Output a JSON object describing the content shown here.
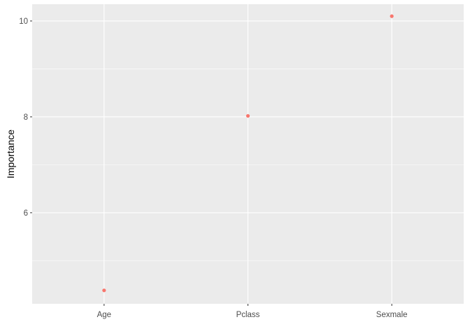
{
  "chart_data": {
    "type": "scatter",
    "title": "",
    "xlabel": "",
    "ylabel": "Importance",
    "categories": [
      "Age",
      "Pclass",
      "Sexmale"
    ],
    "values": [
      4.38,
      8.02,
      10.1
    ],
    "ylim": [
      4.1,
      10.35
    ],
    "y_major_ticks": [
      6,
      8,
      10
    ],
    "y_minor_ticks": [
      5,
      7,
      9
    ],
    "grid": true,
    "legend": "none",
    "point_color": "#f8766d",
    "background_color": "#ebebeb",
    "grid_color": "#ffffff"
  }
}
